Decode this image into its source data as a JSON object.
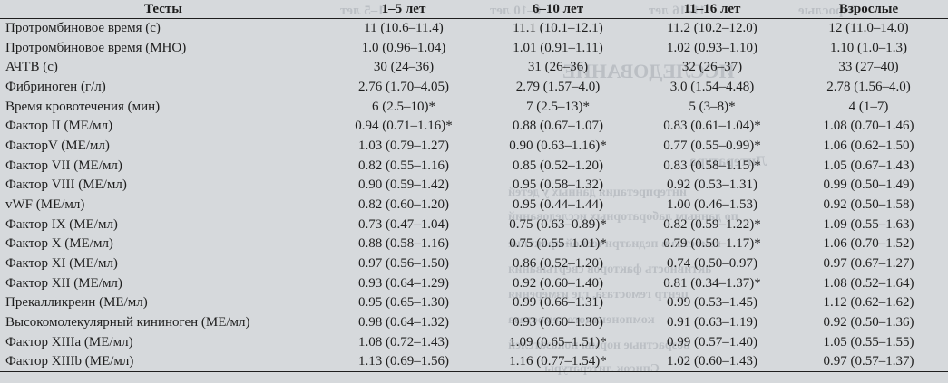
{
  "table": {
    "headers": [
      "Тесты",
      "1–5 лет",
      "6–10 лет",
      "11–16 лет",
      "Взрослые"
    ],
    "rows": [
      [
        "Протромбиновое время (с)",
        "11 (10.6–11.4)",
        "11.1 (10.1–12.1)",
        "11.2 (10.2–12.0)",
        "12 (11.0–14.0)"
      ],
      [
        "Протромбиновое время (МНО)",
        "1.0 (0.96–1.04)",
        "1.01 (0.91–1.11)",
        "1.02 (0.93–1.10)",
        "1.10 (1.0–1.3)"
      ],
      [
        "АЧТВ (с)",
        "30 (24–36)",
        "31 (26–36)",
        "32 (26–37)",
        "33 (27–40)"
      ],
      [
        "Фибриноген (г/л)",
        "2.76 (1.70–4.05)",
        "2.79 (1.57–4.0)",
        "3.0 (1.54–4.48)",
        "2.78 (1.56–4.0)"
      ],
      [
        "Время кровотечения (мин)",
        "6 (2.5–10)*",
        "7 (2.5–13)*",
        "5 (3–8)*",
        "4 (1–7)"
      ],
      [
        "Фактор II (МЕ/мл)",
        "0.94 (0.71–1.16)*",
        "0.88 (0.67–1.07)",
        "0.83 (0.61–1.04)*",
        "1.08 (0.70–1.46)"
      ],
      [
        "ФакторV (МЕ/мл)",
        "1.03 (0.79–1.27)",
        "0.90 (0.63–1.16)*",
        "0.77 (0.55–0.99)*",
        "1.06 (0.62–1.50)"
      ],
      [
        "Фактор VII (МЕ/мл)",
        "0.82 (0.55–1.16)",
        "0.85 (0.52–1.20)",
        "0.83 (0.58–1.15)*",
        "1.05 (0.67–1.43)"
      ],
      [
        "Фактор VIII (МЕ/мл)",
        "0.90 (0.59–1.42)",
        "0.95 (0.58–1.32)",
        "0.92 (0.53–1.31)",
        "0.99 (0.50–1.49)"
      ],
      [
        "vWF (МЕ/мл)",
        "0.82 (0.60–1.20)",
        "0.95 (0.44–1.44)",
        "1.00 (0.46–1.53)",
        "0.92 (0.50–1.58)"
      ],
      [
        "Фактор IX (МЕ/мл)",
        "0.73 (0.47–1.04)",
        "0.75 (0.63–0.89)*",
        "0.82 (0.59–1.22)*",
        "1.09 (0.55–1.63)"
      ],
      [
        "Фактор X (МЕ/мл)",
        "0.88 (0.58–1.16)",
        "0.75 (0.55–1.01)*",
        "0.79 (0.50–1.17)*",
        "1.06 (0.70–1.52)"
      ],
      [
        "Фактор XI (МЕ/мл)",
        "0.97 (0.56–1.50)",
        "0.86 (0.52–1.20)",
        "0.74 (0.50–0.97)",
        "0.97 (0.67–1.27)"
      ],
      [
        "Фактор XII (МЕ/мл)",
        "0.93 (0.64–1.29)",
        "0.92 (0.60–1.40)",
        "0.81 (0.34–1.37)*",
        "1.08 (0.52–1.64)"
      ],
      [
        "Прекалликреин (МЕ/мл)",
        "0.95 (0.65–1.30)",
        "0.99 (0.66–1.31)",
        "0.99 (0.53–1.45)",
        "1.12 (0.62–1.62)"
      ],
      [
        "Высокомолекулярный кининоген (МЕ/мл)",
        "0.98 (0.64–1.32)",
        "0.93 (0.60–1.30)",
        "0.91 (0.63–1.19)",
        "0.92 (0.50–1.36)"
      ],
      [
        "Фактор XIIIa (МЕ/мл)",
        "1.08 (0.72–1.43)",
        "1.09 (0.65–1.51)*",
        "0.99 (0.57–1.40)",
        "1.05 (0.55–1.55)"
      ],
      [
        "Фактор XIIIb (МЕ/мл)",
        "1.13 (0.69–1.56)",
        "1.16 (0.77–1.54)*",
        "1.02 (0.60–1.43)",
        "0.97 (0.57–1.37)"
      ]
    ]
  }
}
